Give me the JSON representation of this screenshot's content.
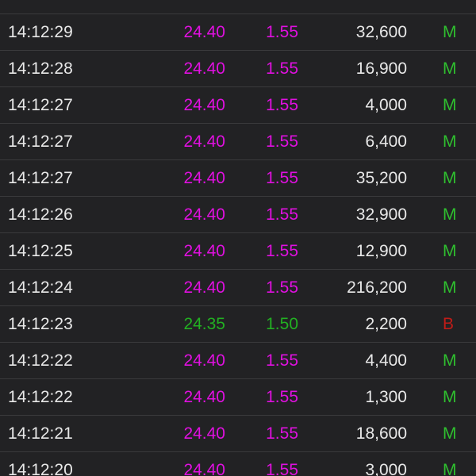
{
  "table": {
    "rows": [
      {
        "time": "14:12:29",
        "price": "24.40",
        "change": "1.55",
        "volume": "32,600",
        "side": "M",
        "price_color": "#e010e0",
        "side_color": "#2fbf2f"
      },
      {
        "time": "14:12:28",
        "price": "24.40",
        "change": "1.55",
        "volume": "16,900",
        "side": "M",
        "price_color": "#e010e0",
        "side_color": "#2fbf2f"
      },
      {
        "time": "14:12:27",
        "price": "24.40",
        "change": "1.55",
        "volume": "4,000",
        "side": "M",
        "price_color": "#e010e0",
        "side_color": "#2fbf2f"
      },
      {
        "time": "14:12:27",
        "price": "24.40",
        "change": "1.55",
        "volume": "6,400",
        "side": "M",
        "price_color": "#e010e0",
        "side_color": "#2fbf2f"
      },
      {
        "time": "14:12:27",
        "price": "24.40",
        "change": "1.55",
        "volume": "35,200",
        "side": "M",
        "price_color": "#e010e0",
        "side_color": "#2fbf2f"
      },
      {
        "time": "14:12:26",
        "price": "24.40",
        "change": "1.55",
        "volume": "32,900",
        "side": "M",
        "price_color": "#e010e0",
        "side_color": "#2fbf2f"
      },
      {
        "time": "14:12:25",
        "price": "24.40",
        "change": "1.55",
        "volume": "12,900",
        "side": "M",
        "price_color": "#e010e0",
        "side_color": "#2fbf2f"
      },
      {
        "time": "14:12:24",
        "price": "24.40",
        "change": "1.55",
        "volume": "216,200",
        "side": "M",
        "price_color": "#e010e0",
        "side_color": "#2fbf2f"
      },
      {
        "time": "14:12:23",
        "price": "24.35",
        "change": "1.50",
        "volume": "2,200",
        "side": "B",
        "price_color": "#22b022",
        "side_color": "#c01c18"
      },
      {
        "time": "14:12:22",
        "price": "24.40",
        "change": "1.55",
        "volume": "4,400",
        "side": "M",
        "price_color": "#e010e0",
        "side_color": "#2fbf2f"
      },
      {
        "time": "14:12:22",
        "price": "24.40",
        "change": "1.55",
        "volume": "1,300",
        "side": "M",
        "price_color": "#e010e0",
        "side_color": "#2fbf2f"
      },
      {
        "time": "14:12:21",
        "price": "24.40",
        "change": "1.55",
        "volume": "18,600",
        "side": "M",
        "price_color": "#e010e0",
        "side_color": "#2fbf2f"
      },
      {
        "time": "14:12:20",
        "price": "24.40",
        "change": "1.55",
        "volume": "3,000",
        "side": "M",
        "price_color": "#e010e0",
        "side_color": "#2fbf2f"
      }
    ]
  }
}
